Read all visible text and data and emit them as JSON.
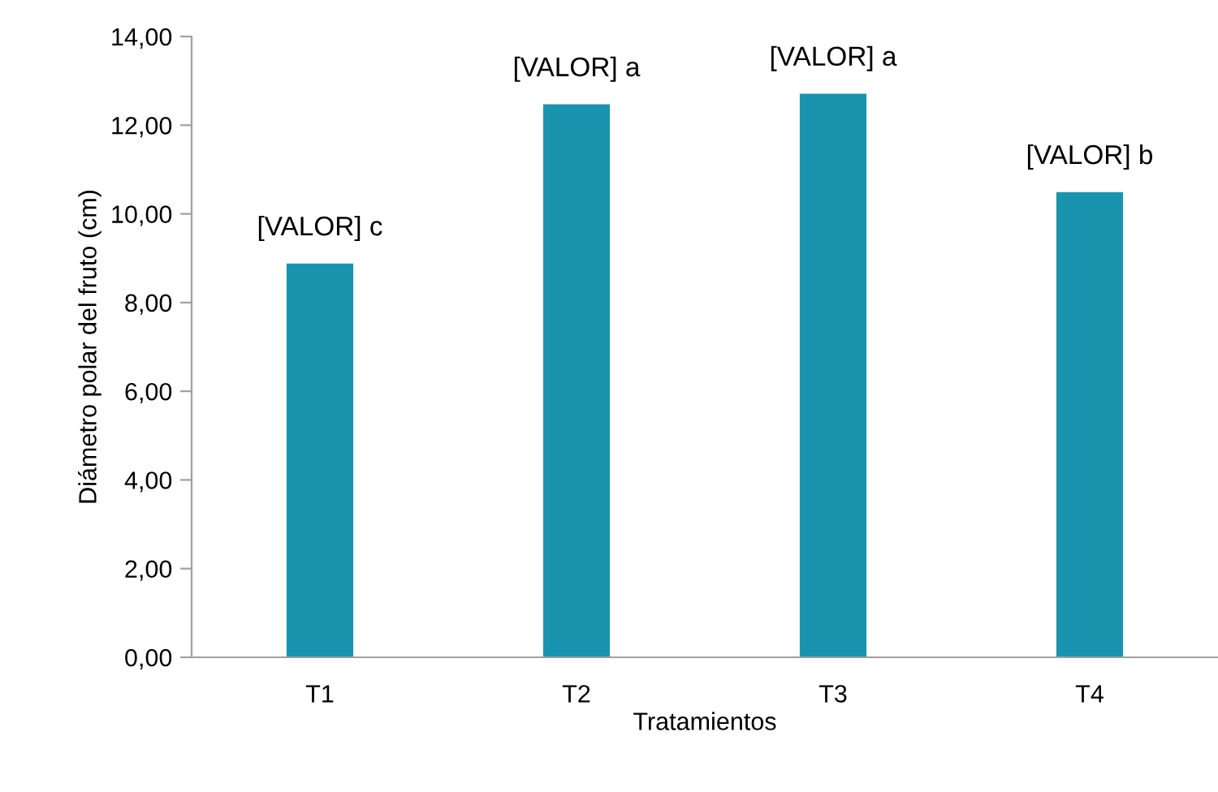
{
  "chart_data": {
    "type": "bar",
    "xlabel": "Tratamientos",
    "ylabel": "Diámetro polar del fruto (cm)",
    "categories": [
      "T1",
      "T2",
      "T3",
      "T4"
    ],
    "values": [
      8.88,
      12.47,
      12.71,
      10.49
    ],
    "color": "#1a93ae",
    "value_labels": [
      "[VALOR] c",
      "[VALOR] a",
      "[VALOR] a",
      "[VALOR] b"
    ],
    "ylim": [
      0,
      14
    ],
    "yticks": [
      {
        "value": 0,
        "label": "0,00"
      },
      {
        "value": 2,
        "label": "2,00"
      },
      {
        "value": 4,
        "label": "4,00"
      },
      {
        "value": 6,
        "label": "6,00"
      },
      {
        "value": 8,
        "label": "8,00"
      },
      {
        "value": 10,
        "label": "10,00"
      },
      {
        "value": 12,
        "label": "12,00"
      },
      {
        "value": 14,
        "label": "14,00"
      }
    ],
    "grid": false,
    "legend": false
  }
}
